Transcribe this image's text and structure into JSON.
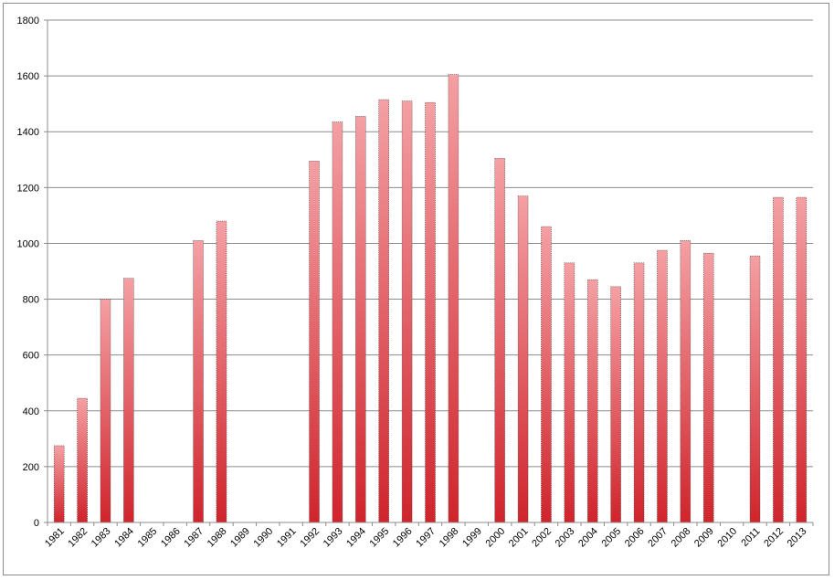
{
  "chart_data": {
    "type": "bar",
    "title": "",
    "xlabel": "",
    "ylabel": "",
    "ylim": [
      0,
      1800
    ],
    "yticks": [
      0,
      200,
      400,
      600,
      800,
      1000,
      1200,
      1400,
      1600,
      1800
    ],
    "grid": true,
    "legend": "none",
    "bar_color_top": "#f4a0a4",
    "bar_color_bottom": "#d0242c",
    "categories": [
      "1981",
      "1982",
      "1983",
      "1984",
      "1985",
      "1986",
      "1987",
      "1988",
      "1989",
      "1990",
      "1991",
      "1992",
      "1993",
      "1994",
      "1995",
      "1996",
      "1997",
      "1998",
      "1999",
      "2000",
      "2001",
      "2002",
      "2003",
      "2004",
      "2005",
      "2006",
      "2007",
      "2008",
      "2009",
      "2010",
      "2011",
      "2012",
      "2013"
    ],
    "values": [
      275,
      445,
      800,
      875,
      null,
      null,
      1010,
      1080,
      null,
      null,
      null,
      1295,
      1435,
      1455,
      1515,
      1510,
      1505,
      1605,
      null,
      1305,
      1170,
      1060,
      930,
      870,
      845,
      930,
      975,
      1010,
      965,
      null,
      955,
      1165,
      1165
    ]
  }
}
